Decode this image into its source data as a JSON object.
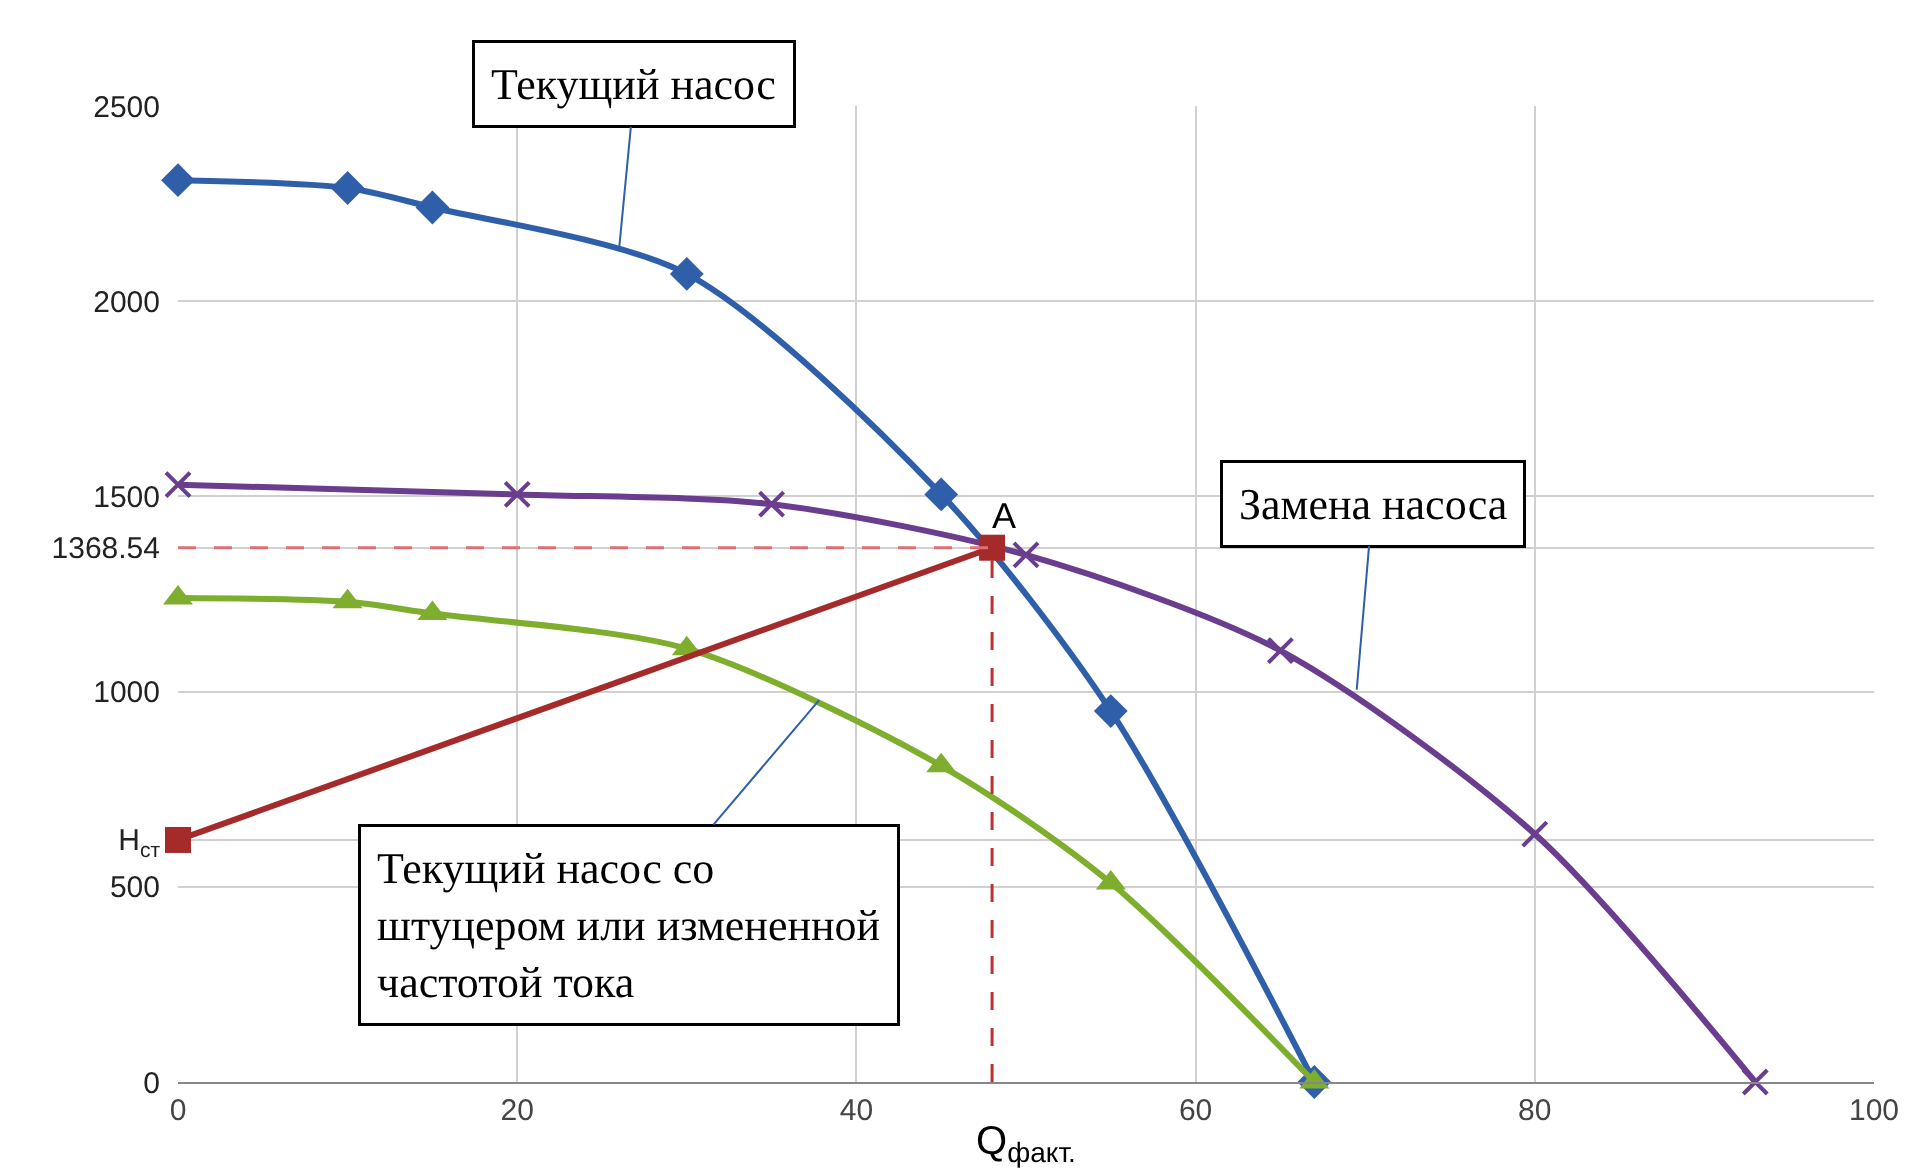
{
  "chart_data": {
    "type": "line",
    "xlabel": "Q$_{факт.}$",
    "xlim": [
      0,
      100
    ],
    "xticks": [
      0,
      20,
      40,
      60,
      80,
      100
    ],
    "ylim": [
      0,
      2500
    ],
    "yticks": [
      0,
      {
        "value": 620,
        "label": "H$_{ст}$"
      },
      500,
      1000,
      {
        "value": 1368.54,
        "label": "1368.54"
      },
      1500,
      2000,
      2500
    ],
    "grid": true,
    "series": [
      {
        "color": "#2e5fa8",
        "marker": "diamond",
        "x": [
          0,
          10,
          15,
          30,
          45,
          55,
          67
        ],
        "values": [
          2310,
          2290,
          2240,
          2070,
          1505,
          950,
          0
        ]
      },
      {
        "color": "#6a3d8f",
        "marker": "cross",
        "x": [
          0,
          20,
          35,
          50,
          65,
          80,
          93
        ],
        "values": [
          1530,
          1505,
          1480,
          1350,
          1105,
          635,
          0
        ]
      },
      {
        "color": "#7fae2e",
        "marker": "triangle",
        "x": [
          0,
          10,
          15,
          30,
          45,
          55,
          67
        ],
        "values": [
          1240,
          1230,
          1200,
          1110,
          810,
          510,
          0
        ]
      },
      {
        "color": "#a52a2a",
        "marker": "square",
        "x": [
          0,
          48
        ],
        "values": [
          620,
          1368.54
        ]
      },
      {
        "color": "#e07070",
        "marker": "none",
        "line_style": "dashed",
        "x": [
          0,
          48
        ],
        "values": [
          1368.54,
          1368.54
        ]
      },
      {
        "color": "#c03030",
        "marker": "none",
        "line_style": "dashed",
        "x": [
          48,
          48
        ],
        "values": [
          0,
          1368.54
        ]
      }
    ],
    "annotations": [
      {
        "text": "Текущий насос",
        "x": 26,
        "y": 2130
      },
      {
        "text": "Замена насоса",
        "x": 69.5,
        "y": 1005
      },
      {
        "text": "Текущий насос со\nштуцером или измененной\nчастотой тока",
        "x": 37.8,
        "y": 978
      },
      {
        "text": "A",
        "x": 48,
        "y": 1368.54
      }
    ]
  }
}
